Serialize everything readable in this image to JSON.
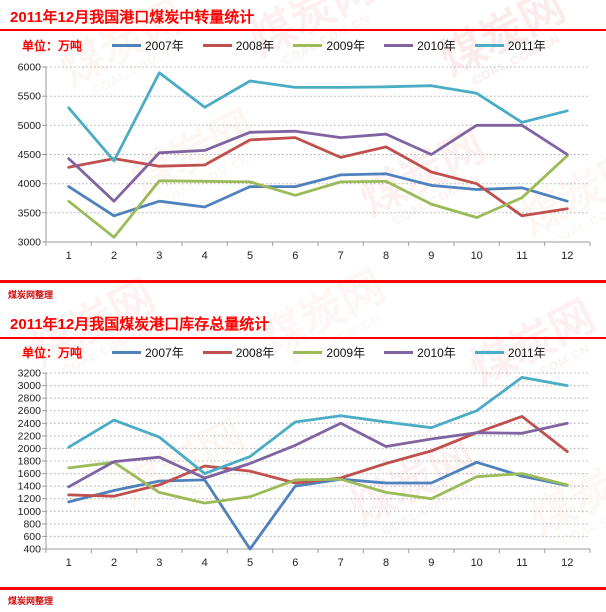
{
  "meta": {
    "source_note_1": "煤炭网整理",
    "source_note_2": "煤炭网整理"
  },
  "watermark": {
    "cn": "煤炭网",
    "en": "COAL.COM.CN"
  },
  "colors": {
    "title_red": "#fe0000",
    "note_red": "#cc1111",
    "grid": "#ababab",
    "axis": "#9b9b9b",
    "tick_text": "#222222",
    "watermark_light": "#f3c1ad",
    "watermark_red": "#ee9a9a"
  },
  "chart_data": [
    {
      "type": "line",
      "title": "2011年12月我国港口煤炭中转量统计",
      "unit_label": "单位：万吨",
      "xlabel": "",
      "ylabel": "万吨",
      "categories": [
        "1",
        "2",
        "3",
        "4",
        "5",
        "6",
        "7",
        "8",
        "9",
        "10",
        "11",
        "12"
      ],
      "ylim": [
        3000,
        6000
      ],
      "ytick_step": 500,
      "grid": "horizontal-dotted",
      "legend_position": "top",
      "series": [
        {
          "name": "2007年",
          "color": "#4F81BD",
          "values": [
            3950,
            3450,
            3700,
            3600,
            3950,
            3950,
            4150,
            4170,
            3970,
            3900,
            3930,
            3700
          ]
        },
        {
          "name": "2008年",
          "color": "#C0504D",
          "values": [
            4280,
            4430,
            4300,
            4320,
            4750,
            4790,
            4450,
            4630,
            4200,
            4000,
            3450,
            3570
          ]
        },
        {
          "name": "2009年",
          "color": "#9BBB59",
          "values": [
            3700,
            3080,
            4050,
            4040,
            4030,
            3800,
            4030,
            4040,
            3650,
            3420,
            3760,
            4480
          ]
        },
        {
          "name": "2010年",
          "color": "#8064A2",
          "values": [
            4430,
            3700,
            4530,
            4570,
            4880,
            4900,
            4790,
            4850,
            4500,
            5000,
            5000,
            4500
          ]
        },
        {
          "name": "2011年",
          "color": "#4BACC6",
          "values": [
            5300,
            4390,
            5900,
            5310,
            5760,
            5650,
            5650,
            5660,
            5680,
            5550,
            5050,
            5250
          ]
        }
      ]
    },
    {
      "type": "line",
      "title": "2011年12月我国煤炭港口库存总量统计",
      "unit_label": "单位：万吨",
      "xlabel": "",
      "ylabel": "万吨",
      "categories": [
        "1",
        "2",
        "3",
        "4",
        "5",
        "6",
        "7",
        "8",
        "9",
        "10",
        "11",
        "12"
      ],
      "ylim": [
        400,
        3200
      ],
      "ytick_step": 200,
      "grid": "horizontal-dotted",
      "legend_position": "top",
      "series": [
        {
          "name": "2007年",
          "color": "#4F81BD",
          "values": [
            1150,
            1330,
            1480,
            1500,
            400,
            1400,
            1510,
            1450,
            1450,
            1780,
            1560,
            1410
          ]
        },
        {
          "name": "2008年",
          "color": "#C0504D",
          "values": [
            1260,
            1240,
            1420,
            1720,
            1640,
            1450,
            1530,
            1760,
            1960,
            2250,
            2510,
            1950
          ]
        },
        {
          "name": "2009年",
          "color": "#9BBB59",
          "values": [
            1690,
            1780,
            1300,
            1130,
            1230,
            1500,
            1510,
            1300,
            1200,
            1550,
            1600,
            1420
          ]
        },
        {
          "name": "2010年",
          "color": "#8064A2",
          "values": [
            1390,
            1790,
            1860,
            1530,
            1760,
            2050,
            2400,
            2030,
            2150,
            2250,
            2240,
            2400
          ]
        },
        {
          "name": "2011年",
          "color": "#4BACC6",
          "values": [
            2020,
            2450,
            2180,
            1600,
            1870,
            2420,
            2520,
            2420,
            2330,
            2600,
            3130,
            3000
          ]
        }
      ]
    }
  ]
}
